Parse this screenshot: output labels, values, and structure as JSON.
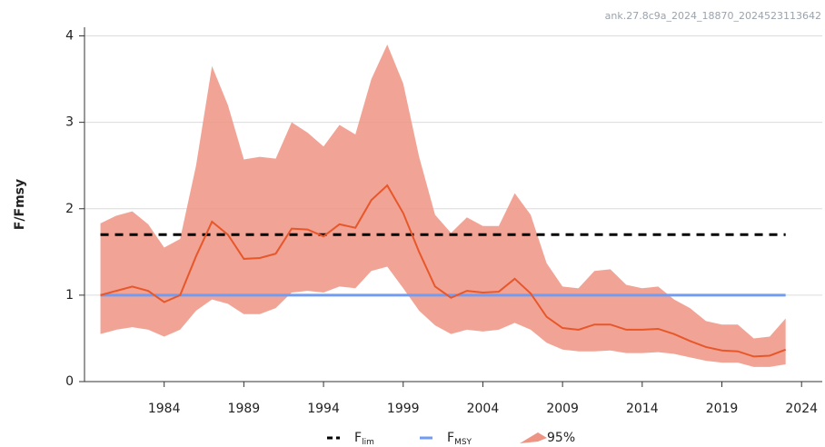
{
  "chart_data": {
    "type": "line",
    "annotation": "ank.27.8c9a_2024_18870_2024523113642",
    "y_label": "F/Fmsy",
    "x": [
      1980,
      1981,
      1982,
      1983,
      1984,
      1985,
      1986,
      1987,
      1988,
      1989,
      1990,
      1991,
      1992,
      1993,
      1994,
      1995,
      1996,
      1997,
      1998,
      1999,
      2000,
      2001,
      2002,
      2003,
      2004,
      2005,
      2006,
      2007,
      2008,
      2009,
      2010,
      2011,
      2012,
      2013,
      2014,
      2015,
      2016,
      2017,
      2018,
      2019,
      2020,
      2021,
      2022,
      2023
    ],
    "median": {
      "color": "#e8572a",
      "values": [
        1.0,
        1.05,
        1.1,
        1.05,
        0.92,
        1.0,
        1.45,
        1.85,
        1.7,
        1.42,
        1.43,
        1.48,
        1.77,
        1.76,
        1.68,
        1.82,
        1.78,
        2.1,
        2.27,
        1.95,
        1.5,
        1.1,
        0.97,
        1.05,
        1.03,
        1.04,
        1.19,
        1.02,
        0.75,
        0.62,
        0.6,
        0.66,
        0.66,
        0.6,
        0.6,
        0.61,
        0.55,
        0.47,
        0.4,
        0.36,
        0.35,
        0.29,
        0.3,
        0.37
      ]
    },
    "band": {
      "name": "95%",
      "color": "#ee9484",
      "upper": [
        1.83,
        1.92,
        1.97,
        1.82,
        1.55,
        1.65,
        2.5,
        3.65,
        3.2,
        2.57,
        2.6,
        2.58,
        3.0,
        2.88,
        2.72,
        2.97,
        2.86,
        3.5,
        3.9,
        3.45,
        2.6,
        1.93,
        1.72,
        1.9,
        1.8,
        1.8,
        2.18,
        1.93,
        1.37,
        1.1,
        1.08,
        1.28,
        1.3,
        1.12,
        1.08,
        1.1,
        0.95,
        0.85,
        0.7,
        0.66,
        0.66,
        0.5,
        0.52,
        0.73
      ],
      "lower": [
        0.55,
        0.6,
        0.63,
        0.6,
        0.52,
        0.6,
        0.82,
        0.95,
        0.9,
        0.78,
        0.78,
        0.85,
        1.03,
        1.05,
        1.03,
        1.1,
        1.08,
        1.28,
        1.33,
        1.08,
        0.82,
        0.65,
        0.55,
        0.6,
        0.58,
        0.6,
        0.68,
        0.6,
        0.45,
        0.37,
        0.35,
        0.35,
        0.36,
        0.33,
        0.33,
        0.34,
        0.32,
        0.28,
        0.24,
        0.22,
        0.22,
        0.17,
        0.17,
        0.2
      ]
    },
    "reference_lines": [
      {
        "name": "F",
        "subscript": "lim",
        "value": 1.7,
        "color": "#000000",
        "dashed": true
      },
      {
        "name": "F",
        "subscript": "MSY",
        "value": 1,
        "color": "#6f9cf5",
        "dashed": false
      }
    ],
    "xlim": [
      1979,
      2025.3
    ],
    "xticks": [
      1984,
      1989,
      1994,
      1999,
      2004,
      2009,
      2014,
      2019,
      2024
    ],
    "ylim": [
      0,
      4.1
    ],
    "yticks": [
      0,
      1,
      2,
      3,
      4
    ],
    "grid": true
  }
}
